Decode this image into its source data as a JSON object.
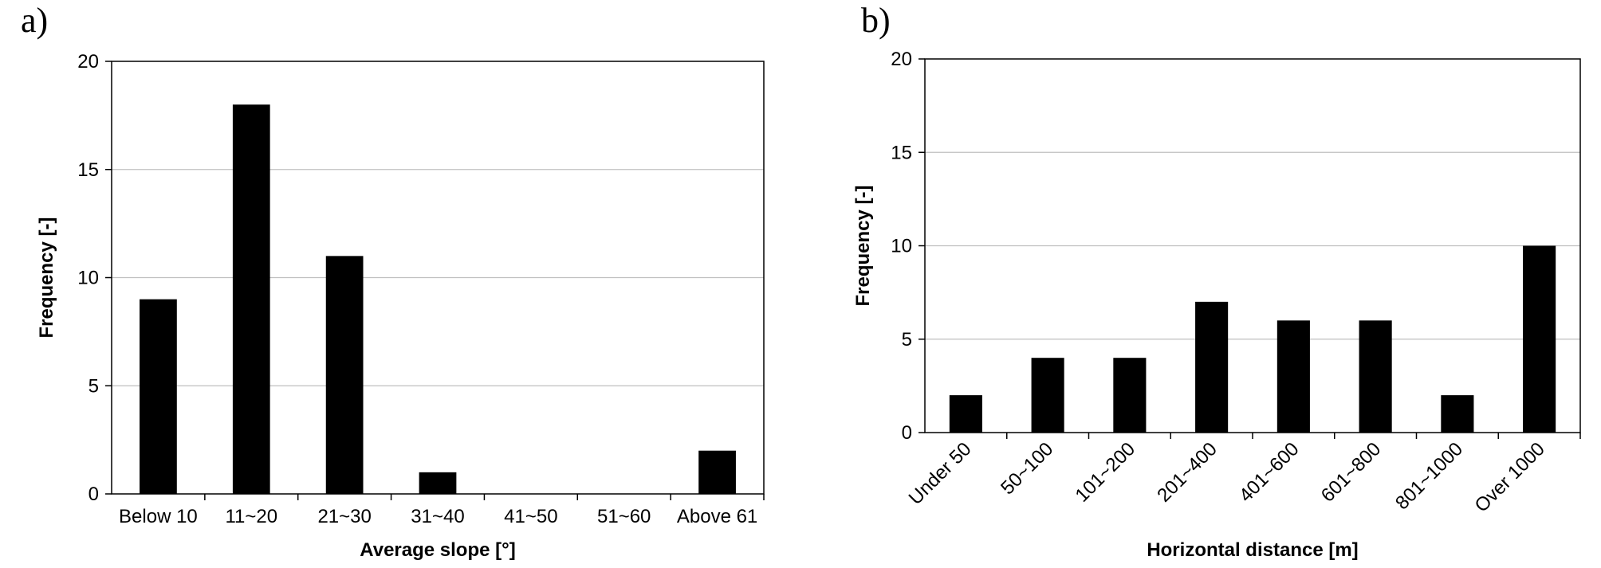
{
  "chart_data": [
    {
      "type": "bar",
      "panel_label": "a)",
      "title": "",
      "xlabel": "Average slope [°]",
      "ylabel": "Frequency [-]",
      "categories": [
        "Below 10",
        "11~20",
        "21~30",
        "31~40",
        "41~50",
        "51~60",
        "Above 61"
      ],
      "values": [
        9,
        18,
        11,
        1,
        0,
        0,
        2
      ],
      "ylim": [
        0,
        20
      ],
      "yticks": [
        0,
        5,
        10,
        15,
        20
      ],
      "grid": true,
      "bar_color": "#000000",
      "grid_color": "#bfbfbf",
      "x_tick_rotation": 0
    },
    {
      "type": "bar",
      "panel_label": "b)",
      "title": "",
      "xlabel": "Horizontal distance [m]",
      "ylabel": "Frequency [-]",
      "categories": [
        "Under 50",
        "50~100",
        "101~200",
        "201~400",
        "401~600",
        "601~800",
        "801~1000",
        "Over 1000"
      ],
      "values": [
        2,
        4,
        4,
        7,
        6,
        6,
        2,
        10
      ],
      "ylim": [
        0,
        20
      ],
      "yticks": [
        0,
        5,
        10,
        15,
        20
      ],
      "grid": true,
      "bar_color": "#000000",
      "grid_color": "#bfbfbf",
      "x_tick_rotation": -45
    }
  ]
}
